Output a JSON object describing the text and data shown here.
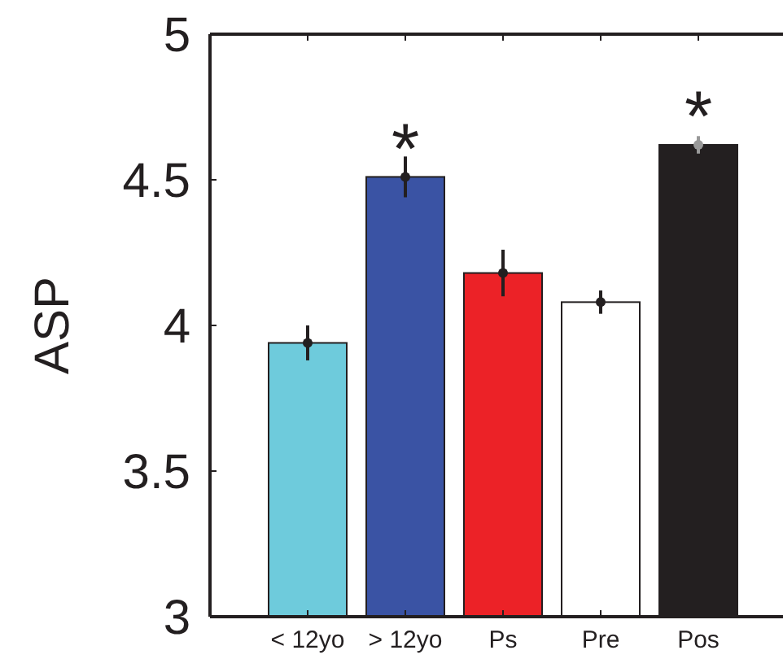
{
  "chart_data": {
    "type": "bar",
    "ylabel": "ASP",
    "categories": [
      "< 12yo",
      "> 12yo",
      "Ps",
      "Pre",
      "Pos"
    ],
    "series": [
      {
        "values": [
          3.94,
          4.51,
          4.18,
          4.08,
          4.62
        ],
        "colors": [
          "#6ecbdc",
          "#3a53a4",
          "#ec2227",
          "#ffffff",
          "#231f20"
        ]
      },
      {
        "type": "scatter",
        "x": [
          "< 12yo",
          "> 12yo",
          "Ps",
          "Pre",
          "Pos"
        ],
        "values": [
          3.94,
          4.51,
          4.18,
          4.08,
          4.62
        ],
        "errors": [
          0.06,
          0.07,
          0.08,
          0.04,
          0.03
        ],
        "colors": [
          "#231f20",
          "#231f20",
          "#231f20",
          "#231f20",
          "#999999"
        ]
      }
    ],
    "ylim": [
      3,
      5
    ],
    "yticks": [
      3,
      3.5,
      4,
      4.5,
      5
    ],
    "grid": false,
    "annotations": [
      {
        "text": "*",
        "x": "> 12yo",
        "y": 4.51
      },
      {
        "text": "*",
        "x": "Pos",
        "y": 4.62
      }
    ]
  }
}
